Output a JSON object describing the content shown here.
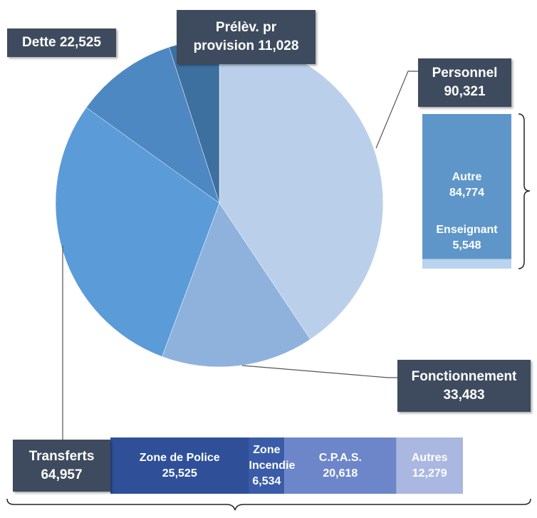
{
  "chart_data": [
    {
      "type": "pie",
      "categories": [
        "Personnel",
        "Fonctionnement",
        "Transferts",
        "Dette",
        "Prélèv. pr provision"
      ],
      "values": [
        90321,
        33483,
        64957,
        22525,
        11028
      ],
      "value_labels": [
        "90,321",
        "33,483",
        "64,957",
        "22,525",
        "11,028"
      ],
      "colors": [
        "#bad0ea",
        "#8fb2dd",
        "#5b9bd8",
        "#4d88c2",
        "#3d6f9f"
      ]
    },
    {
      "type": "stacked_bar",
      "orientation": "vertical",
      "series": [
        {
          "name": "Autre",
          "color": "#5f96c9",
          "values": [
            84774
          ],
          "value_labels": [
            "84,774"
          ]
        },
        {
          "name": "Enseignant",
          "color": "#bad3ee",
          "values": [
            5548
          ],
          "value_labels": [
            "5,548"
          ]
        }
      ]
    },
    {
      "type": "stacked_bar",
      "orientation": "horizontal",
      "series": [
        {
          "name": "Zone de Police",
          "color": "#2f5099",
          "values": [
            25525
          ],
          "value_labels": [
            "25,525"
          ]
        },
        {
          "name": "Zone Incendie",
          "color": "#3a5ca8",
          "values": [
            6534
          ],
          "value_labels": [
            "6,534"
          ]
        },
        {
          "name": "C.P.A.S.",
          "color": "#6d86c9",
          "values": [
            20618
          ],
          "value_labels": [
            "20,618"
          ]
        },
        {
          "name": "Autres",
          "color": "#aab7e1",
          "values": [
            12279
          ],
          "value_labels": [
            "12,279"
          ]
        }
      ]
    }
  ]
}
